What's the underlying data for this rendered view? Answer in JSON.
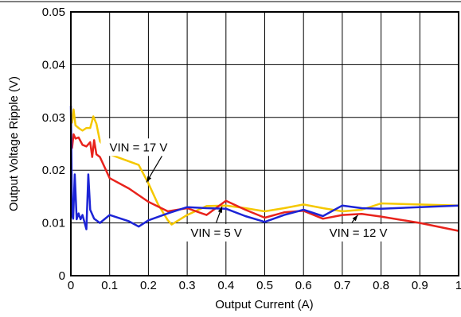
{
  "chart_data": {
    "type": "line",
    "title": "",
    "xlabel": "Output Current (A)",
    "ylabel": "Output Voltage Ripple (V)",
    "xlim": [
      0,
      1
    ],
    "ylim": [
      0,
      0.05
    ],
    "x_ticks": [
      "0",
      "0.1",
      "0.2",
      "0.3",
      "0.4",
      "0.5",
      "0.6",
      "0.7",
      "0.8",
      "0.9",
      "1"
    ],
    "y_ticks": [
      "0",
      "0.01",
      "0.02",
      "0.03",
      "0.04",
      "0.05"
    ],
    "grid": true,
    "series": [
      {
        "name": "VIN = 17 V",
        "color": "#f5c800",
        "x": [
          0,
          0.003,
          0.007,
          0.012,
          0.02,
          0.03,
          0.04,
          0.05,
          0.058,
          0.066,
          0.075,
          0.1,
          0.13,
          0.175,
          0.2,
          0.225,
          0.25,
          0.26,
          0.3,
          0.35,
          0.4,
          0.45,
          0.5,
          0.55,
          0.6,
          0.65,
          0.7,
          0.75,
          0.8,
          0.9,
          1.0
        ],
        "y": [
          0.0305,
          0.029,
          0.0315,
          0.0285,
          0.028,
          0.0275,
          0.028,
          0.028,
          0.0302,
          0.0288,
          0.0255,
          0.023,
          0.0222,
          0.021,
          0.0175,
          0.0135,
          0.0105,
          0.0097,
          0.0115,
          0.0132,
          0.0133,
          0.0128,
          0.0122,
          0.0128,
          0.0135,
          0.0128,
          0.0122,
          0.0125,
          0.0137,
          0.0135,
          0.0133
        ]
      },
      {
        "name": "",
        "color": "#e8231c",
        "x": [
          0,
          0.003,
          0.007,
          0.012,
          0.02,
          0.03,
          0.04,
          0.05,
          0.055,
          0.06,
          0.066,
          0.075,
          0.1,
          0.15,
          0.2,
          0.25,
          0.3,
          0.35,
          0.4,
          0.45,
          0.5,
          0.55,
          0.6,
          0.65,
          0.7,
          0.75,
          0.8,
          0.9,
          1.0
        ],
        "y": [
          0.025,
          0.0242,
          0.0268,
          0.026,
          0.0262,
          0.0248,
          0.0245,
          0.0253,
          0.0225,
          0.0257,
          0.023,
          0.0225,
          0.0185,
          0.0165,
          0.014,
          0.0122,
          0.0128,
          0.0115,
          0.0142,
          0.0125,
          0.011,
          0.012,
          0.0123,
          0.0108,
          0.0115,
          0.0117,
          0.0112,
          0.01,
          0.0085
        ]
      },
      {
        "name": "",
        "color": "#1c24d6",
        "x": [
          0,
          0.003,
          0.006,
          0.01,
          0.015,
          0.02,
          0.025,
          0.03,
          0.035,
          0.04,
          0.045,
          0.05,
          0.06,
          0.075,
          0.1,
          0.15,
          0.175,
          0.2,
          0.25,
          0.3,
          0.35,
          0.4,
          0.45,
          0.5,
          0.55,
          0.6,
          0.65,
          0.7,
          0.75,
          0.8,
          0.9,
          1.0
        ],
        "y": [
          0.0322,
          0.0115,
          0.0108,
          0.0192,
          0.0107,
          0.0118,
          0.0107,
          0.0115,
          0.0102,
          0.0088,
          0.0192,
          0.0125,
          0.0108,
          0.01,
          0.0115,
          0.0103,
          0.0093,
          0.0105,
          0.0118,
          0.013,
          0.0128,
          0.0127,
          0.0113,
          0.0102,
          0.0115,
          0.0125,
          0.0113,
          0.0133,
          0.0128,
          0.0127,
          0.013,
          0.0133
        ]
      }
    ],
    "annotations": [
      {
        "text": "VIN = 17 V",
        "x": 0.195,
        "y": 0.0177,
        "from_x": 0.235,
        "from_y": 0.0227,
        "placement": "upper-left"
      },
      {
        "text": "VIN = 5 V",
        "x": 0.39,
        "y": 0.0131,
        "from_x": 0.375,
        "from_y": 0.0101,
        "placement": "lower-center"
      },
      {
        "text": "VIN = 12 V",
        "x": 0.74,
        "y": 0.0115,
        "from_x": 0.725,
        "from_y": 0.0101,
        "placement": "lower-right"
      }
    ]
  }
}
